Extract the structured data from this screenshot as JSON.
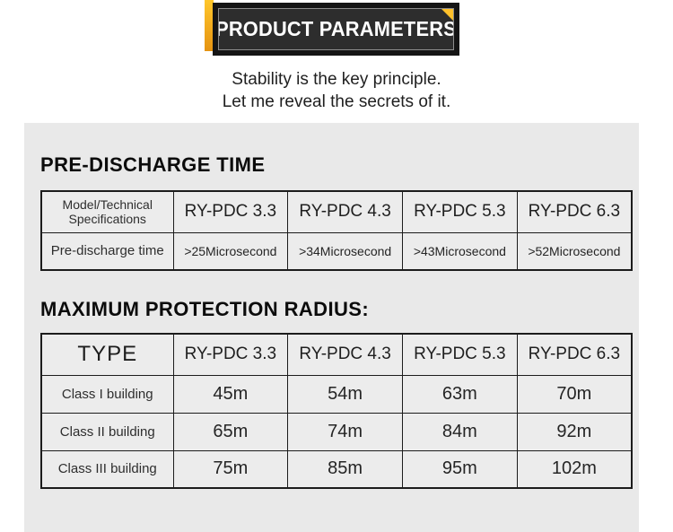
{
  "banner": {
    "title": "PRODUCT PARAMETERS"
  },
  "subtitle": {
    "line1": "Stability is the key principle.",
    "line2": "Let me reveal the secrets of it."
  },
  "sections": [
    {
      "heading": "PRE-DISCHARGE TIME",
      "table": {
        "header": [
          "Model/Technical Specifications",
          "RY-PDC 3.3",
          "RY-PDC 4.3",
          "RY-PDC 5.3",
          "RY-PDC 6.3"
        ],
        "rows": [
          [
            "Pre-discharge time",
            ">25Microsecond",
            ">34Microsecond",
            ">43Microsecond",
            ">52Microsecond"
          ]
        ]
      }
    },
    {
      "heading": "MAXIMUM PROTECTION RADIUS:",
      "table": {
        "header": [
          "TYPE",
          "RY-PDC 3.3",
          "RY-PDC 4.3",
          "RY-PDC 5.3",
          "RY-PDC 6.3"
        ],
        "rows": [
          [
            "Class I building",
            "45m",
            "54m",
            "63m",
            "70m"
          ],
          [
            "Class II building",
            "65m",
            "74m",
            "84m",
            "92m"
          ],
          [
            "Class III building",
            "75m",
            "85m",
            "95m",
            "102m"
          ]
        ]
      }
    }
  ],
  "colors": {
    "accent_yellow": "#ffc12b",
    "banner_black": "#151515",
    "banner_inner": "#2d2d2d",
    "panel_gray": "#e9e9e9",
    "cell_gray": "#ececec",
    "border_dark": "#1c1c1c"
  }
}
